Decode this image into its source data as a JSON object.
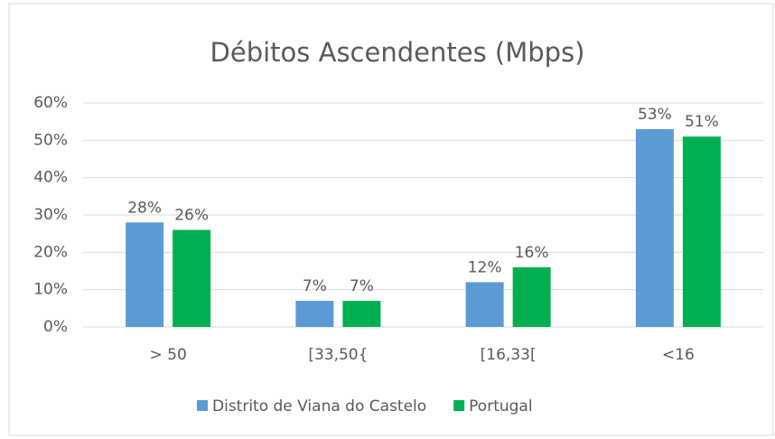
{
  "chart_data": {
    "type": "bar",
    "title": "Débitos Ascendentes (Mbps)",
    "categories": [
      "> 50",
      "[33,50{",
      "[16,33[",
      "<16"
    ],
    "series": [
      {
        "name": "Distrito de Viana do Castelo",
        "color": "#5b9bd5",
        "values": [
          28,
          7,
          12,
          53
        ],
        "value_labels": [
          "28%",
          "7%",
          "12%",
          "53%"
        ]
      },
      {
        "name": "Portugal",
        "color": "#00b050",
        "values": [
          26,
          7,
          16,
          51
        ],
        "value_labels": [
          "26%",
          "7%",
          "16%",
          "51%"
        ]
      }
    ],
    "ylim": [
      0,
      60
    ],
    "yticks": [
      {
        "value": 0,
        "label": "0%"
      },
      {
        "value": 10,
        "label": "10%"
      },
      {
        "value": 20,
        "label": "20%"
      },
      {
        "value": 30,
        "label": "30%"
      },
      {
        "value": 40,
        "label": "40%"
      },
      {
        "value": 50,
        "label": "50%"
      },
      {
        "value": 60,
        "label": "60%"
      }
    ],
    "grid": true,
    "legend": "bottom"
  }
}
